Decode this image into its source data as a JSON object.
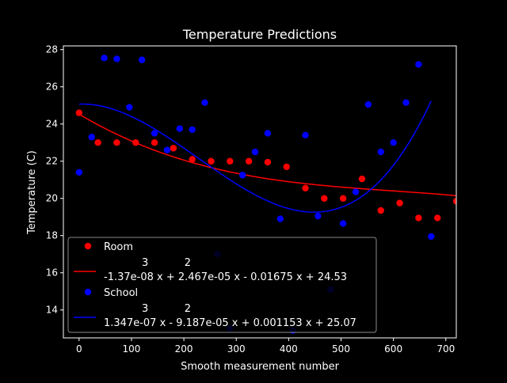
{
  "chart_data": {
    "type": "scatter",
    "title": "Temperature Predictions",
    "xlabel": "Smooth measurement number",
    "ylabel": "Temperature (C)",
    "xlim": [
      -30,
      720
    ],
    "ylim": [
      12.5,
      28.2
    ],
    "xticks": [
      0,
      100,
      200,
      300,
      400,
      500,
      600,
      700
    ],
    "yticks": [
      14,
      16,
      18,
      20,
      22,
      24,
      26,
      28
    ],
    "grid": false,
    "legend_position": "lower-left",
    "series": [
      {
        "name": "Room",
        "kind": "points",
        "color": "#ff0000",
        "points": [
          [
            0,
            24.6
          ],
          [
            36,
            23.0
          ],
          [
            72,
            23.0
          ],
          [
            108,
            23.0
          ],
          [
            144,
            23.0
          ],
          [
            180,
            22.7
          ],
          [
            216,
            22.1
          ],
          [
            252,
            22.0
          ],
          [
            288,
            22.0
          ],
          [
            324,
            22.0
          ],
          [
            360,
            21.95
          ],
          [
            396,
            21.7
          ],
          [
            432,
            20.55
          ],
          [
            468,
            20.0
          ],
          [
            504,
            20.0
          ],
          [
            540,
            21.05
          ],
          [
            576,
            19.35
          ],
          [
            612,
            19.75
          ],
          [
            648,
            18.95
          ],
          [
            684,
            18.95
          ],
          [
            720,
            19.85
          ]
        ]
      },
      {
        "name": "-1.37e-08 x + 2.467e-05 x - 0.01675 x + 24.53",
        "exponents_line": "3           2",
        "kind": "polyfit",
        "color": "#ff0000",
        "coeffs": [
          -1.37e-08,
          2.467e-05,
          -0.01675,
          24.53
        ],
        "domain": [
          0,
          720
        ]
      },
      {
        "name": "School",
        "kind": "points",
        "color": "#0000ff",
        "points": [
          [
            0,
            21.4
          ],
          [
            24,
            23.3
          ],
          [
            48,
            27.55
          ],
          [
            72,
            27.5
          ],
          [
            96,
            24.9
          ],
          [
            120,
            27.45
          ],
          [
            144,
            23.5
          ],
          [
            168,
            22.6
          ],
          [
            192,
            23.75
          ],
          [
            216,
            23.7
          ],
          [
            240,
            25.15
          ],
          [
            264,
            17.0
          ],
          [
            288,
            13.0
          ],
          [
            312,
            21.25
          ],
          [
            336,
            22.5
          ],
          [
            360,
            23.5
          ],
          [
            384,
            18.9
          ],
          [
            408,
            12.9
          ],
          [
            432,
            23.4
          ],
          [
            456,
            19.05
          ],
          [
            480,
            15.1
          ],
          [
            504,
            18.65
          ],
          [
            528,
            20.35
          ],
          [
            552,
            25.05
          ],
          [
            576,
            22.5
          ],
          [
            600,
            23.0
          ],
          [
            624,
            25.15
          ],
          [
            648,
            27.2
          ],
          [
            672,
            17.95
          ]
        ]
      },
      {
        "name": "1.347e-07 x - 9.187e-05 x + 0.001153 x + 25.07",
        "exponents_line": "3           2",
        "kind": "polyfit",
        "color": "#0000ff",
        "coeffs": [
          1.347e-07,
          -9.187e-05,
          0.001153,
          25.07
        ],
        "domain": [
          0,
          672
        ]
      }
    ]
  }
}
